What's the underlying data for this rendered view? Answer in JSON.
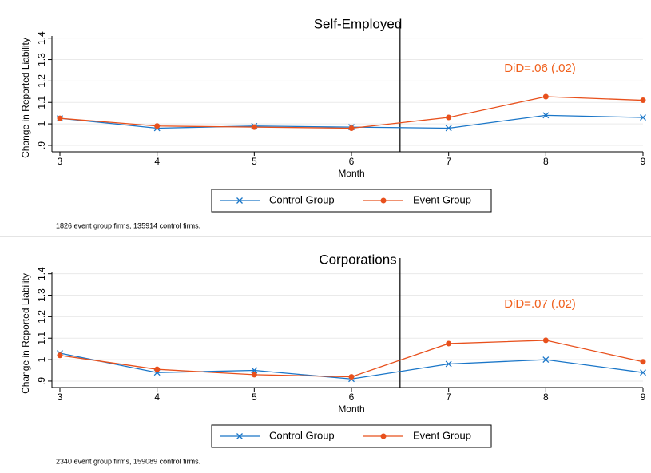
{
  "chart_data": [
    {
      "type": "line",
      "title": "Self-Employed",
      "x_label": "Month",
      "y_label": "Change in Reported Liability",
      "x": [
        3,
        4,
        5,
        6,
        7,
        8,
        9
      ],
      "xlim": [
        3,
        9
      ],
      "xticks": [
        3,
        4,
        5,
        6,
        7,
        8,
        9
      ],
      "ylim": [
        0.87,
        1.41
      ],
      "yticks": [
        {
          "value": 0.9,
          "label": ".9"
        },
        1,
        1.1,
        1.2,
        1.3,
        1.4
      ],
      "grid": true,
      "vline": 6.5,
      "series": [
        {
          "name": "Control Group",
          "color": "#1a76c8",
          "marker": "x",
          "values": [
            1.026,
            0.98,
            0.99,
            0.985,
            0.98,
            1.04,
            1.03
          ]
        },
        {
          "name": "Event Group",
          "color": "#e8501c",
          "marker": "circle",
          "values": [
            1.026,
            0.99,
            0.985,
            0.98,
            1.03,
            1.127,
            1.11
          ]
        }
      ],
      "annotation": "DiD=.06 (.02)",
      "annotation_color": "#f0601c",
      "note": "1826 event group firms, 135914 control firms."
    },
    {
      "type": "line",
      "title": "Corporations",
      "x_label": "Month",
      "y_label": "Change in Reported Liability",
      "x": [
        3,
        4,
        5,
        6,
        7,
        8,
        9
      ],
      "xlim": [
        3,
        9
      ],
      "xticks": [
        3,
        4,
        5,
        6,
        7,
        8,
        9
      ],
      "ylim": [
        0.87,
        1.41
      ],
      "yticks": [
        {
          "value": 0.9,
          "label": ".9"
        },
        1,
        1.1,
        1.2,
        1.3,
        1.4
      ],
      "grid": true,
      "vline": 6.5,
      "series": [
        {
          "name": "Control Group",
          "color": "#1a76c8",
          "marker": "x",
          "values": [
            1.03,
            0.94,
            0.95,
            0.91,
            0.98,
            1.0,
            0.94
          ]
        },
        {
          "name": "Event Group",
          "color": "#e8501c",
          "marker": "circle",
          "values": [
            1.02,
            0.955,
            0.93,
            0.92,
            1.075,
            1.09,
            0.99
          ]
        }
      ],
      "annotation": "DiD=.07 (.02)",
      "annotation_color": "#f0601c",
      "note": "2340 event group firms, 159089 control firms."
    }
  ]
}
